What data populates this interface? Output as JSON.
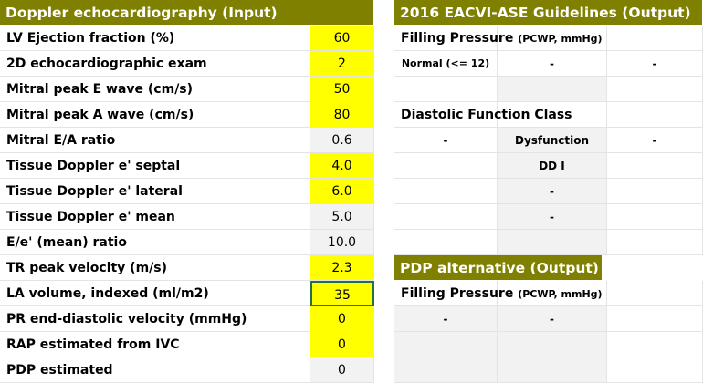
{
  "input": {
    "title": "Doppler echocardiography (Input)",
    "rows": [
      {
        "label": "LV Ejection fraction (%)",
        "value": "60"
      },
      {
        "label": "2D echocardiographic exam",
        "value": "2"
      },
      {
        "label": "Mitral peak E wave (cm/s)",
        "value": "50"
      },
      {
        "label": "Mitral peak A wave (cm/s)",
        "value": "80"
      },
      {
        "label": "Mitral E/A ratio",
        "value": "0.6"
      },
      {
        "label": "Tissue Doppler e' septal",
        "value": "4.0"
      },
      {
        "label": "Tissue Doppler e' lateral",
        "value": "6.0"
      },
      {
        "label": "Tissue Doppler e' mean",
        "value": "5.0"
      },
      {
        "label": "E/e' (mean) ratio",
        "value": "10.0"
      },
      {
        "label": "TR peak velocity (m/s)",
        "value": "2.3"
      },
      {
        "label": "LA volume, indexed (ml/m2)",
        "value": "35"
      },
      {
        "label": "PR end-diastolic velocity (mmHg)",
        "value": "0"
      },
      {
        "label": "RAP estimated from IVC",
        "value": "0"
      },
      {
        "label": "PDP estimated",
        "value": "0"
      }
    ]
  },
  "guidelines": {
    "title": "2016 EACVI-ASE Guidelines (Output)",
    "filling_pressure": {
      "label": "Filling Pressure",
      "unit": "(PCWP, mmHg)"
    },
    "normal": {
      "label": "Normal (<= 12)",
      "values": [
        "-",
        "-"
      ]
    },
    "diastolic_function": {
      "label": "Diastolic Function Class",
      "row": [
        "-",
        "Dysfunction",
        "-"
      ],
      "classes": [
        "DD I",
        "-",
        "-"
      ]
    }
  },
  "pdp": {
    "title": "PDP alternative (Output)",
    "filling_pressure": {
      "label": "Filling Pressure",
      "unit": "(PCWP, mmHg)"
    },
    "values": [
      "-",
      "-"
    ]
  }
}
